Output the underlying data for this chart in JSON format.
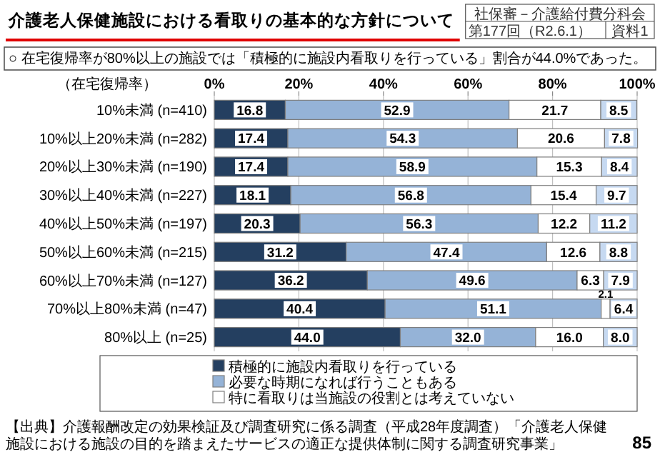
{
  "chart_data": {
    "type": "bar",
    "orientation": "horizontal",
    "stacked": true,
    "title": "介護老人保健施設における看取りの基本的な方針について",
    "subtitle": "○ 在宅復帰率が80%以上の施設では「積極的に施設内看取りを行っている」割合が44.0%であった。",
    "ylabel": "（在宅復帰率）",
    "categories": [
      "10%未満 (n=410)",
      "10%以上20%未満 (n=282)",
      "20%以上30%未満 (n=190)",
      "30%以上40%未満 (n=227)",
      "40%以上50%未満 (n=197)",
      "50%以上60%未満 (n=215)",
      "60%以上70%未満 (n=127)",
      "70%以上80%未満 (n=47)",
      "80%以上 (n=25)"
    ],
    "series": [
      {
        "name": "積極的に施設内看取りを行っている",
        "color": "#243f60",
        "values": [
          16.8,
          17.4,
          17.4,
          18.1,
          20.3,
          31.2,
          36.2,
          40.4,
          44.0
        ],
        "value_labels": [
          "16.8",
          "17.4",
          "17.4",
          "18.1",
          "20.3",
          "31.2",
          "36.2",
          "40.4",
          "44.0"
        ]
      },
      {
        "name": "必要な時期になれば行うこともある",
        "color": "#95b3d7",
        "values": [
          52.9,
          54.3,
          58.9,
          56.8,
          56.3,
          47.4,
          49.6,
          51.1,
          32.0
        ],
        "value_labels": [
          "52.9",
          "54.3",
          "58.9",
          "56.8",
          "56.3",
          "47.4",
          "49.6",
          "51.1",
          "32.0"
        ]
      },
      {
        "name": "特に看取りは当施設の役割とは考えていない",
        "color": "#ffffff",
        "values": [
          21.7,
          20.6,
          15.3,
          15.4,
          12.2,
          12.6,
          6.3,
          2.1,
          16.0
        ],
        "value_labels": [
          "21.7",
          "20.6",
          "15.3",
          "15.4",
          "12.2",
          "12.6",
          "6.3",
          "2.1",
          "16.0"
        ]
      },
      {
        "color": "#c6d9f1",
        "values": [
          8.5,
          7.8,
          8.4,
          9.7,
          11.2,
          8.8,
          7.9,
          6.4,
          8.0
        ],
        "value_labels": [
          "8.5",
          "7.8",
          "8.4",
          "9.7",
          "11.2",
          "8.8",
          "7.9",
          "6.4",
          "8.0"
        ]
      }
    ],
    "xlim": [
      0,
      100
    ],
    "xticks": [
      {
        "value": 0,
        "label": "0%"
      },
      {
        "value": 20,
        "label": "20%"
      },
      {
        "value": 40,
        "label": "40%"
      },
      {
        "value": 60,
        "label": "60%"
      },
      {
        "value": 80,
        "label": "80%"
      },
      {
        "value": 100,
        "label": "100%"
      }
    ],
    "grid": "x",
    "legend": "bottom",
    "annotations": [
      "社保審－介護給付費分科会",
      "第177回（R2.6.1）",
      "資料1",
      "【出典】介護報酬改定の効果検証及び調査研究に係る調査（平成28年度調査）「介護老人保健施設における施設の目的を踏まえたサービスの適正な提供体制に関する調査研究事業」",
      "85"
    ]
  }
}
